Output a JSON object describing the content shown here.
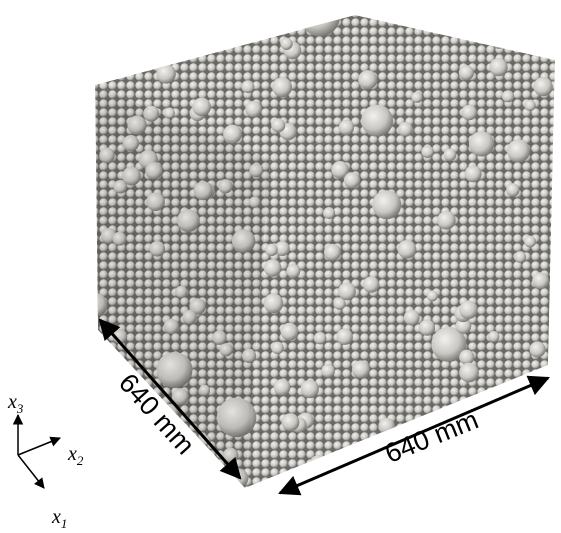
{
  "dimensions": {
    "left": "640 mm",
    "right": "640 mm"
  },
  "axes": [
    {
      "symbol": "x",
      "index": "3"
    },
    {
      "symbol": "x",
      "index": "2"
    },
    {
      "symbol": "x",
      "index": "1"
    }
  ]
}
